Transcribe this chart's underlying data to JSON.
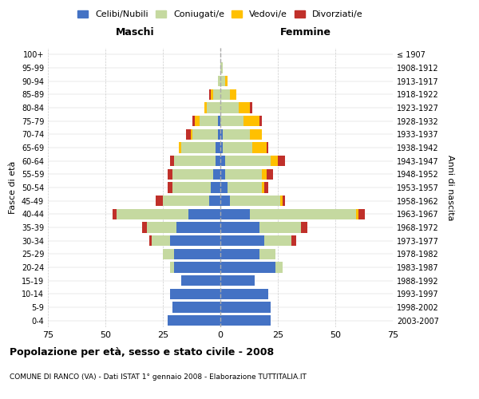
{
  "age_groups": [
    "0-4",
    "5-9",
    "10-14",
    "15-19",
    "20-24",
    "25-29",
    "30-34",
    "35-39",
    "40-44",
    "45-49",
    "50-54",
    "55-59",
    "60-64",
    "65-69",
    "70-74",
    "75-79",
    "80-84",
    "85-89",
    "90-94",
    "95-99",
    "100+"
  ],
  "birth_years": [
    "2003-2007",
    "1998-2002",
    "1993-1997",
    "1988-1992",
    "1983-1987",
    "1978-1982",
    "1973-1977",
    "1968-1972",
    "1963-1967",
    "1958-1962",
    "1953-1957",
    "1948-1952",
    "1943-1947",
    "1938-1942",
    "1933-1937",
    "1928-1932",
    "1923-1927",
    "1918-1922",
    "1913-1917",
    "1908-1912",
    "≤ 1907"
  ],
  "male": {
    "celibe": [
      23,
      21,
      22,
      17,
      20,
      20,
      22,
      19,
      14,
      5,
      4,
      3,
      2,
      2,
      1,
      1,
      0,
      0,
      0,
      0,
      0
    ],
    "coniugato": [
      0,
      0,
      0,
      0,
      2,
      5,
      8,
      13,
      31,
      20,
      17,
      18,
      18,
      15,
      11,
      8,
      6,
      3,
      1,
      0,
      0
    ],
    "vedovo": [
      0,
      0,
      0,
      0,
      0,
      0,
      0,
      0,
      0,
      0,
      0,
      0,
      0,
      1,
      1,
      2,
      1,
      1,
      0,
      0,
      0
    ],
    "divorziato": [
      0,
      0,
      0,
      0,
      0,
      0,
      1,
      2,
      2,
      3,
      2,
      2,
      2,
      0,
      2,
      1,
      0,
      1,
      0,
      0,
      0
    ]
  },
  "female": {
    "nubile": [
      22,
      22,
      21,
      15,
      24,
      17,
      19,
      17,
      13,
      4,
      3,
      2,
      2,
      1,
      1,
      0,
      0,
      0,
      0,
      0,
      0
    ],
    "coniugata": [
      0,
      0,
      0,
      0,
      3,
      7,
      12,
      18,
      46,
      22,
      15,
      16,
      20,
      13,
      12,
      10,
      8,
      4,
      2,
      1,
      0
    ],
    "vedova": [
      0,
      0,
      0,
      0,
      0,
      0,
      0,
      0,
      1,
      1,
      1,
      2,
      3,
      6,
      5,
      7,
      5,
      3,
      1,
      0,
      0
    ],
    "divorziata": [
      0,
      0,
      0,
      0,
      0,
      0,
      2,
      3,
      3,
      1,
      2,
      3,
      3,
      1,
      0,
      1,
      1,
      0,
      0,
      0,
      0
    ]
  },
  "color_celibe": "#4472c4",
  "color_coniugato": "#c5d9a0",
  "color_vedovo": "#ffc000",
  "color_divorziato": "#c0302a",
  "title": "Popolazione per età, sesso e stato civile - 2008",
  "subtitle": "COMUNE DI RANCO (VA) - Dati ISTAT 1° gennaio 2008 - Elaborazione TUTTITALIA.IT",
  "xlabel_left": "Maschi",
  "xlabel_right": "Femmine",
  "ylabel_left": "Fasce di età",
  "ylabel_right": "Anni di nascita",
  "xlim": 75,
  "bg_color": "#ffffff",
  "grid_color": "#cccccc"
}
